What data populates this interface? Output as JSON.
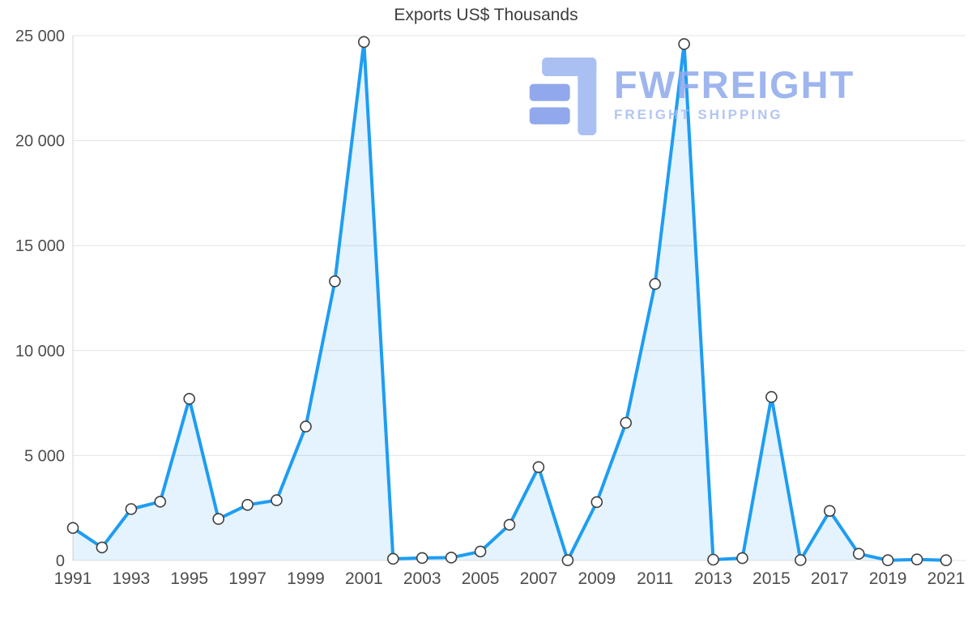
{
  "watermark": {
    "brand": "FWFREIGHT",
    "tagline": "FREIGHT SHIPPING",
    "icon_light": "#9db6f0",
    "icon_dark": "#7e9ae9"
  },
  "chart_data": {
    "type": "area",
    "title": "Exports US$ Thousands",
    "xlabel": "",
    "ylabel": "",
    "x": [
      1991,
      1992,
      1993,
      1994,
      1995,
      1996,
      1997,
      1998,
      1999,
      2000,
      2001,
      2002,
      2003,
      2004,
      2005,
      2006,
      2007,
      2008,
      2009,
      2010,
      2011,
      2012,
      2013,
      2014,
      2015,
      2016,
      2017,
      2018,
      2019,
      2020,
      2021
    ],
    "values": [
      1550,
      620,
      2450,
      2800,
      7700,
      1980,
      2650,
      2870,
      6380,
      13300,
      24700,
      80,
      120,
      140,
      430,
      1700,
      4450,
      10,
      2780,
      6560,
      13170,
      24600,
      40,
      110,
      7790,
      20,
      2360,
      320,
      10,
      50,
      10
    ],
    "ylim": [
      0,
      25000
    ],
    "y_ticks": [
      0,
      5000,
      10000,
      15000,
      20000,
      25000
    ],
    "y_tick_labels": [
      "0",
      "5 000",
      "10 000",
      "15 000",
      "20 000",
      "25 000"
    ],
    "x_tick_labels": [
      "1991",
      "1993",
      "1995",
      "1997",
      "1999",
      "2001",
      "2003",
      "2005",
      "2007",
      "2009",
      "2011",
      "2013",
      "2015",
      "2017",
      "2019",
      "2021"
    ],
    "grid": "horizontal",
    "legend": "none",
    "colors": {
      "line": "#1e9df2",
      "fill": "#1e9df2",
      "marker_fill": "#ffffff",
      "marker_stroke": "#3f3f3f",
      "grid": "#e4e4e4",
      "axis": "#d4d4d4",
      "text": "#4d4d4d",
      "title": "#3d3d3d"
    }
  }
}
